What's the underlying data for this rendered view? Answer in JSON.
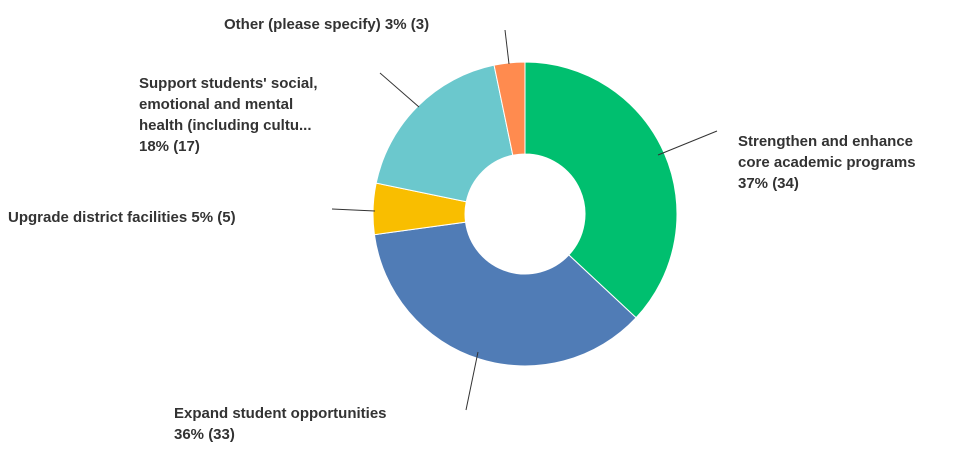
{
  "chart_data": {
    "type": "pie",
    "style": "donut",
    "colors": {
      "Strengthen and enhance core academic programs": "#00bf6f",
      "Expand student opportunities": "#507cb6",
      "Upgrade district facilities": "#f9be00",
      "Support students' social, emotional and mental health (including cultu...": "#6bc8cd",
      "Other (please specify)": "#ff8b4f"
    },
    "slices": [
      {
        "name": "Strengthen and enhance core academic programs",
        "percent": 37,
        "count": 34,
        "label_lines": [
          "Strengthen and enhance",
          "core academic programs",
          "37% (34)"
        ]
      },
      {
        "name": "Expand student opportunities",
        "percent": 36,
        "count": 33,
        "label_lines": [
          "Expand student opportunities",
          "36% (33)"
        ]
      },
      {
        "name": "Upgrade district facilities",
        "percent": 5,
        "count": 5,
        "label_lines": [
          "Upgrade district facilities 5% (5)"
        ]
      },
      {
        "name": "Support students' social, emotional and mental health (including cultu...",
        "percent": 18,
        "count": 17,
        "label_lines": [
          "Support students' social,",
          "emotional and mental",
          "health (including cultu...",
          "18% (17)"
        ]
      },
      {
        "name": "Other (please specify)",
        "percent": 3,
        "count": 3,
        "label_lines": [
          "Other (please specify) 3% (3)"
        ]
      }
    ]
  }
}
